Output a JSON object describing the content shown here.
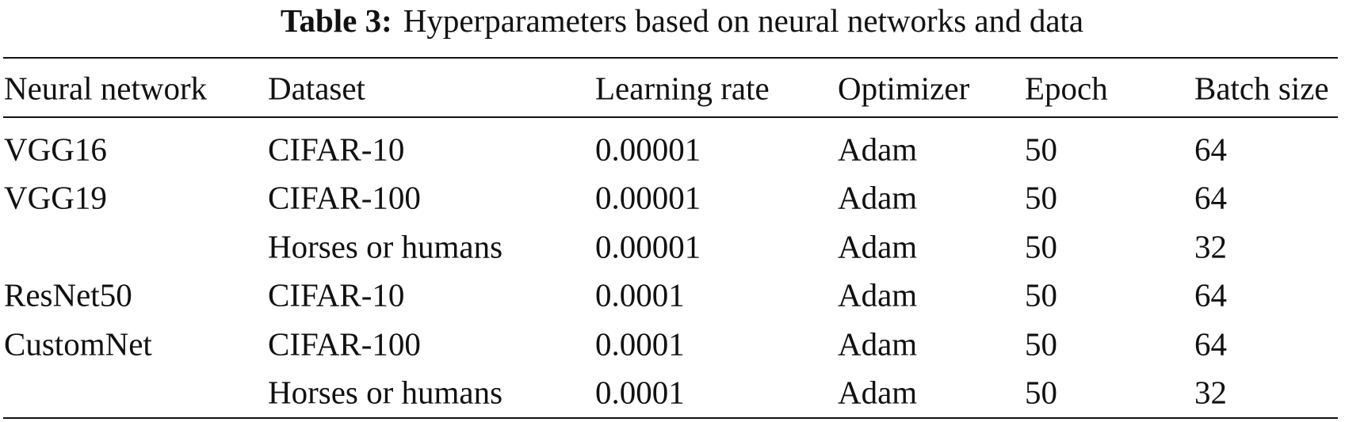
{
  "caption": {
    "label": "Table 3:",
    "text": "Hyperparameters based on neural networks and data"
  },
  "table": {
    "header": [
      "Neural network",
      "Dataset",
      "Learning rate",
      "Optimizer",
      "Epoch",
      "Batch size"
    ],
    "rows": [
      [
        "VGG16",
        "CIFAR-10",
        "0.00001",
        "Adam",
        "50",
        "64"
      ],
      [
        "VGG19",
        "CIFAR-100",
        "0.00001",
        "Adam",
        "50",
        "64"
      ],
      [
        null,
        "Horses or humans",
        "0.00001",
        "Adam",
        "50",
        "32"
      ],
      [
        "ResNet50",
        "CIFAR-10",
        "0.0001",
        "Adam",
        "50",
        "64"
      ],
      [
        "CustomNet",
        "CIFAR-100",
        "0.0001",
        "Adam",
        "50",
        "64"
      ],
      [
        null,
        "Horses or humans",
        "0.0001",
        "Adam",
        "50",
        "32"
      ]
    ]
  }
}
